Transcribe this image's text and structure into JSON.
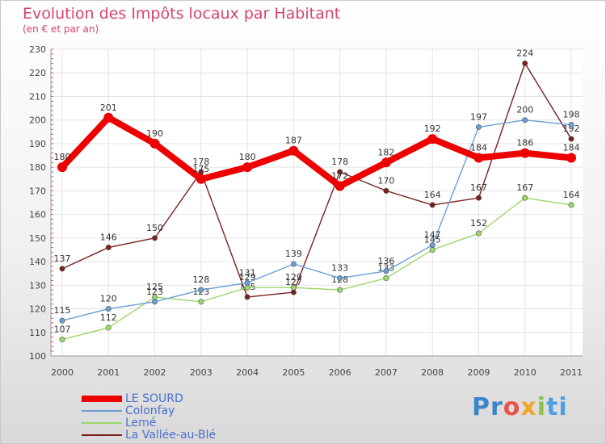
{
  "title": "Evolution des Impôts locaux par Habitant",
  "subtitle": "(en € et par an)",
  "logo": "Proxiti",
  "chart_data": {
    "type": "line",
    "title": "Evolution des Impôts locaux par Habitant",
    "ylabel": "(en € et par an)",
    "xlabel": "",
    "x": [
      "2000",
      "2001",
      "2002",
      "2003",
      "2004",
      "2005",
      "2006",
      "2007",
      "2008",
      "2009",
      "2010",
      "2011"
    ],
    "ylim": [
      100,
      230
    ],
    "yticks": [
      100,
      110,
      120,
      130,
      140,
      150,
      160,
      170,
      180,
      190,
      200,
      210,
      220,
      230
    ],
    "grid": true,
    "series": [
      {
        "name": "LE SOURD",
        "color": "#ee0000",
        "values": [
          180,
          201,
          190,
          175,
          180,
          187,
          172,
          182,
          192,
          184,
          186,
          184
        ]
      },
      {
        "name": "Colonfay",
        "color": "#6a9fd4",
        "values": [
          115,
          120,
          123,
          128,
          131,
          139,
          133,
          136,
          147,
          197,
          200,
          198
        ]
      },
      {
        "name": "Lemé",
        "color": "#9ad86a",
        "values": [
          107,
          112,
          125,
          123,
          129,
          129,
          128,
          133,
          145,
          152,
          167,
          164
        ]
      },
      {
        "name": "La Vallée-au-Blé",
        "color": "#7b2020",
        "values": [
          137,
          146,
          150,
          178,
          125,
          127,
          178,
          170,
          164,
          167,
          224,
          192
        ]
      }
    ]
  },
  "legend": [
    {
      "name": "LE SOURD",
      "color": "#ee0000"
    },
    {
      "name": "Colonfay",
      "color": "#6a9fd4"
    },
    {
      "name": "Lemé",
      "color": "#9ad86a"
    },
    {
      "name": "La Vallée-au-Blé",
      "color": "#7b2020"
    }
  ]
}
